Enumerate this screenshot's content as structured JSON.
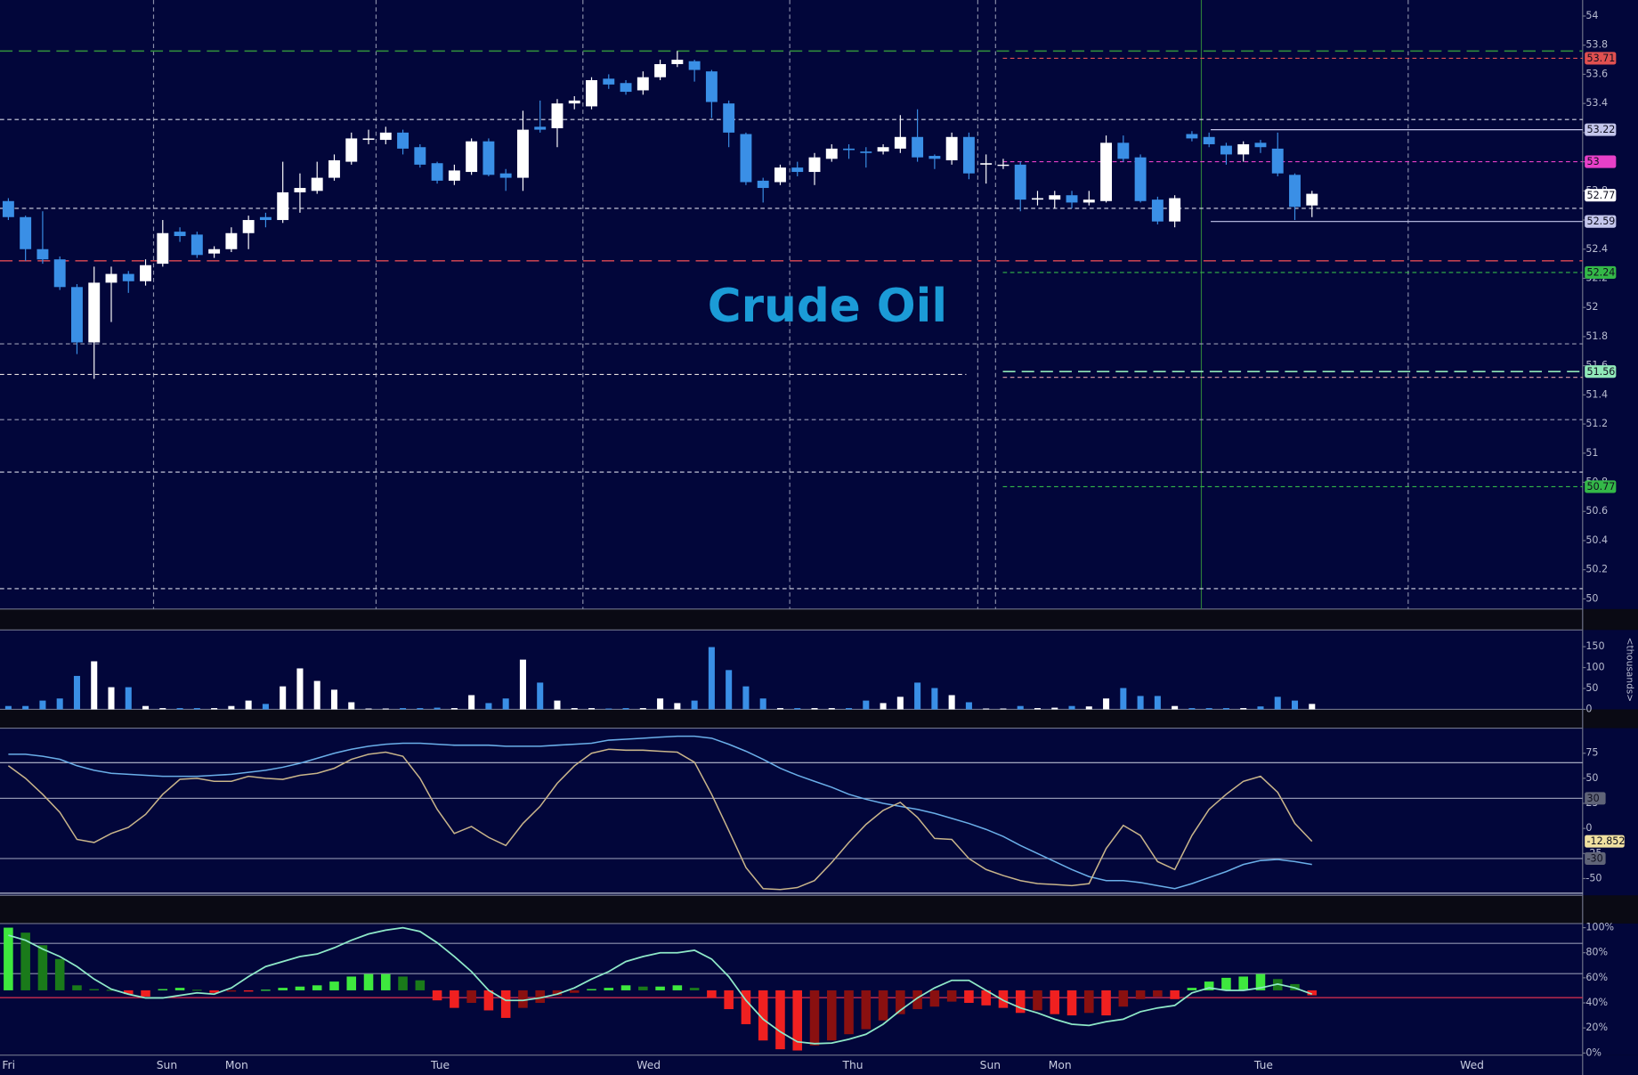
{
  "chart_data": {
    "type": "candlestick",
    "title": "Crude Oil",
    "categories": [
      "Fri",
      null,
      null,
      null,
      null,
      null,
      null,
      null,
      null,
      "Sun",
      null,
      null,
      null,
      "Mon",
      null,
      null,
      null,
      null,
      null,
      null,
      null,
      null,
      null,
      null,
      null,
      "Tue",
      null,
      null,
      null,
      null,
      null,
      null,
      null,
      null,
      null,
      null,
      null,
      "Wed",
      null,
      null,
      null,
      null,
      null,
      null,
      null,
      null,
      null,
      null,
      null,
      "Thu",
      null,
      null,
      null,
      null,
      null,
      null,
      null,
      "Sun",
      null,
      null,
      null,
      "Mon",
      null,
      null,
      null,
      null,
      null,
      null,
      null,
      null,
      null,
      null,
      null,
      "Tue",
      null,
      null,
      null,
      null,
      null,
      null,
      null,
      null,
      null,
      null,
      null,
      "Wed",
      null,
      null,
      null,
      null,
      null,
      null
    ],
    "open": [
      52.73,
      52.62,
      52.4,
      52.33,
      52.14,
      51.76,
      52.17,
      52.23,
      52.18,
      52.3,
      52.52,
      52.5,
      52.37,
      52.4,
      52.51,
      52.62,
      52.6,
      52.79,
      52.8,
      52.89,
      53.0,
      53.15,
      53.15,
      53.2,
      53.1,
      52.99,
      52.87,
      52.93,
      53.14,
      52.92,
      52.89,
      53.24,
      53.23,
      53.4,
      53.38,
      53.57,
      53.54,
      53.49,
      53.58,
      53.67,
      53.69,
      53.62,
      53.4,
      53.19,
      52.87,
      52.86,
      52.96,
      52.93,
      53.02,
      53.09,
      53.07,
      53.07,
      53.09,
      53.17,
      53.04,
      53.01,
      53.17,
      52.98,
      52.98,
      52.98,
      52.74,
      52.74,
      52.77,
      52.72,
      52.73,
      53.13,
      53.03,
      52.74,
      52.59,
      53.19,
      53.17,
      53.11,
      53.05,
      53.13,
      53.09,
      52.91,
      52.7,
      null,
      null,
      null,
      null,
      null,
      null,
      null,
      null,
      null,
      null,
      null,
      null,
      null,
      null,
      null
    ],
    "high": [
      52.75,
      52.63,
      52.66,
      52.35,
      52.16,
      52.28,
      52.28,
      52.25,
      52.33,
      52.6,
      52.55,
      52.52,
      52.42,
      52.55,
      52.63,
      52.65,
      53.0,
      52.92,
      53.0,
      53.05,
      53.2,
      53.22,
      53.24,
      53.22,
      53.12,
      53.0,
      52.98,
      53.16,
      53.16,
      52.95,
      53.35,
      53.42,
      53.43,
      53.45,
      53.58,
      53.6,
      53.56,
      53.62,
      53.7,
      53.76,
      53.7,
      53.63,
      53.42,
      53.2,
      52.89,
      52.98,
      53.0,
      53.06,
      53.12,
      53.12,
      53.1,
      53.12,
      53.32,
      53.36,
      53.05,
      53.2,
      53.2,
      53.05,
      53.02,
      53.0,
      52.8,
      52.8,
      52.8,
      52.8,
      53.18,
      53.18,
      53.05,
      52.76,
      52.77,
      53.21,
      53.2,
      53.13,
      53.14,
      53.15,
      53.2,
      52.92,
      52.8,
      null,
      null,
      null,
      null,
      null,
      null,
      null,
      null,
      null,
      null,
      null,
      null,
      null,
      null,
      null
    ],
    "low": [
      52.6,
      52.32,
      52.3,
      52.12,
      51.68,
      51.51,
      51.9,
      52.1,
      52.15,
      52.28,
      52.45,
      52.34,
      52.34,
      52.38,
      52.4,
      52.55,
      52.58,
      52.65,
      52.78,
      52.87,
      52.98,
      53.12,
      53.12,
      53.05,
      52.96,
      52.85,
      52.84,
      52.91,
      52.9,
      52.8,
      52.8,
      53.2,
      53.1,
      53.36,
      53.36,
      53.5,
      53.46,
      53.46,
      53.56,
      53.65,
      53.55,
      53.3,
      53.1,
      52.84,
      52.72,
      52.84,
      52.9,
      52.84,
      53.0,
      53.02,
      52.96,
      53.05,
      53.06,
      53.0,
      52.95,
      52.98,
      52.88,
      52.85,
      52.95,
      52.66,
      52.7,
      52.68,
      52.68,
      52.7,
      52.72,
      53.0,
      52.72,
      52.57,
      52.55,
      53.14,
      53.1,
      52.98,
      53.0,
      53.06,
      52.9,
      52.6,
      52.62,
      null,
      null,
      null,
      null,
      null,
      null,
      null,
      null,
      null,
      null,
      null,
      null,
      null,
      null,
      null
    ],
    "close": [
      52.62,
      52.4,
      52.33,
      52.14,
      51.76,
      52.17,
      52.23,
      52.18,
      52.29,
      52.51,
      52.49,
      52.36,
      52.4,
      52.51,
      52.6,
      52.6,
      52.79,
      52.82,
      52.89,
      53.01,
      53.16,
      53.16,
      53.2,
      53.09,
      52.98,
      52.87,
      52.94,
      53.14,
      52.91,
      52.89,
      53.22,
      53.22,
      53.4,
      53.42,
      53.56,
      53.53,
      53.48,
      53.58,
      53.67,
      53.7,
      53.63,
      53.41,
      53.2,
      52.86,
      52.82,
      52.96,
      52.93,
      53.03,
      53.09,
      53.08,
      53.06,
      53.1,
      53.17,
      53.03,
      53.02,
      53.17,
      52.92,
      52.99,
      52.98,
      52.74,
      52.75,
      52.77,
      52.72,
      52.74,
      53.13,
      53.02,
      52.73,
      52.59,
      52.75,
      53.16,
      53.12,
      53.05,
      53.12,
      53.1,
      52.92,
      52.69,
      52.78,
      null,
      null,
      null,
      null,
      null,
      null,
      null,
      null,
      null,
      null,
      null,
      null,
      null,
      null,
      null
    ],
    "up_color": "#ffffff",
    "down_color": "#3a8fe6",
    "ylim": [
      49.93,
      54.11
    ],
    "yticks": [
      50,
      50.2,
      50.4,
      50.6,
      50.8,
      51,
      51.2,
      51.4,
      51.6,
      51.8,
      52,
      52.2,
      52.4,
      52.6,
      52.8,
      53,
      53.2,
      53.4,
      53.6,
      53.8,
      54
    ],
    "levels": [
      {
        "value": 53.76,
        "color": "#2f8a3c",
        "style": "longdash",
        "span": "all",
        "tag": false
      },
      {
        "value": 53.29,
        "color": "#d8dae8",
        "style": "dash",
        "span": "all",
        "tag": false
      },
      {
        "value": 52.68,
        "color": "#d8dae8",
        "style": "dash",
        "span": "all",
        "tag": false
      },
      {
        "value": 52.32,
        "color": "#c04050",
        "style": "longdash",
        "span": "all",
        "tag": false
      },
      {
        "value": 51.75,
        "color": "#9a9cb4",
        "style": "dash",
        "span": "all",
        "tag": false
      },
      {
        "value": 51.54,
        "color": "#e8e0e0",
        "style": "dash",
        "span": "early",
        "tag": false
      },
      {
        "value": 51.23,
        "color": "#9a9cb4",
        "style": "dash",
        "span": "all",
        "tag": false
      },
      {
        "value": 50.87,
        "color": "#d8dae8",
        "style": "dash",
        "span": "all",
        "tag": false
      },
      {
        "value": 50.07,
        "color": "#d8dae8",
        "style": "dash",
        "span": "all",
        "tag": false
      },
      {
        "value": 53.71,
        "color": "#e05050",
        "style": "dash",
        "span": "session",
        "tag": true
      },
      {
        "value": 53.22,
        "color": "#c4c6ec",
        "style": "solid",
        "span": "late",
        "tag": true
      },
      {
        "value": 53,
        "color": "#e840c8",
        "style": "dash",
        "span": "session",
        "tag": true
      },
      {
        "value": 52.77,
        "color": "#ffffff",
        "style": "none",
        "span": "none",
        "tag": true
      },
      {
        "value": 52.59,
        "color": "#c4c6ec",
        "style": "solid",
        "span": "late",
        "tag": true
      },
      {
        "value": 52.24,
        "color": "#34b848",
        "style": "dash",
        "span": "session",
        "tag": true
      },
      {
        "value": 51.56,
        "color": "#90e8b8",
        "style": "longdash",
        "span": "session",
        "tag": true
      },
      {
        "value": 51.52,
        "color": "#e0a0a8",
        "style": "dash",
        "span": "session",
        "tag": false
      },
      {
        "value": 50.77,
        "color": "#34b848",
        "style": "dash",
        "span": "session",
        "tag": true
      }
    ],
    "volume": {
      "axis_label": "<thousands>",
      "values": [
        8,
        8,
        21,
        26,
        80,
        115,
        53,
        53,
        8,
        3,
        3,
        3,
        3,
        8,
        21,
        13,
        55,
        98,
        68,
        47,
        17,
        2,
        2,
        3,
        3,
        4,
        3,
        34,
        15,
        26,
        119,
        64,
        21,
        3,
        3,
        2,
        3,
        3,
        26,
        15,
        21,
        149,
        94,
        55,
        26,
        3,
        3,
        3,
        3,
        3,
        21,
        15,
        30,
        64,
        51,
        34,
        17,
        2,
        2,
        8,
        3,
        4,
        8,
        7,
        26,
        51,
        32,
        32,
        8,
        3,
        3,
        3,
        3,
        7,
        30,
        21,
        13,
        null,
        null,
        null,
        null,
        null,
        null,
        null,
        null,
        null,
        null,
        null,
        null,
        null,
        null,
        null
      ],
      "ylim": [
        0,
        190
      ],
      "yticks": [
        0,
        50,
        100,
        150
      ]
    },
    "oscillator": {
      "series": [
        {
          "color": "#6aaee8",
          "values": [
            74,
            74,
            72,
            69,
            62.5,
            58,
            55,
            54,
            53,
            52,
            52,
            52,
            53,
            54,
            56,
            58,
            61,
            65,
            70,
            75,
            79,
            82,
            84,
            85,
            85,
            84,
            83,
            83,
            83,
            82,
            82,
            82,
            83,
            84,
            85,
            88,
            89,
            90,
            91,
            92,
            92,
            90,
            84,
            77,
            69,
            60,
            53,
            47,
            41,
            34,
            29,
            25,
            22,
            19,
            15,
            10,
            5,
            -1,
            -8,
            -17,
            -25,
            -33,
            -41,
            -48,
            -52,
            -52,
            -54,
            -57,
            -60,
            -55,
            -49,
            -43,
            -36,
            -32,
            -31,
            -33,
            -36,
            null,
            null,
            null,
            null,
            null,
            null,
            null,
            null,
            null,
            null,
            null,
            null,
            null,
            null,
            null
          ]
        },
        {
          "color": "#c8b48a",
          "values": [
            62.5,
            50,
            34,
            16,
            -11,
            -14,
            -5,
            1,
            14,
            34,
            49,
            50,
            47,
            47,
            52,
            50,
            49,
            53,
            55,
            60,
            69,
            74,
            76,
            72,
            50,
            19,
            -5,
            2,
            -9,
            -17,
            5,
            22,
            45,
            62.5,
            75,
            79,
            78,
            78,
            77,
            76,
            66,
            34,
            -2,
            -39,
            -60,
            -61,
            -59,
            -52,
            -34,
            -14,
            4,
            18,
            26,
            11,
            -10,
            -11,
            -30,
            -41,
            -47,
            -52,
            -55,
            -56,
            -57,
            -55,
            -20,
            3,
            -7,
            -33,
            -41,
            -7,
            19,
            34,
            47,
            52,
            36,
            5,
            -12.852,
            null,
            null,
            null,
            null,
            null,
            null,
            null,
            null,
            null,
            null,
            null,
            null,
            null,
            null,
            null
          ]
        }
      ],
      "ylim": [
        -66.7,
        100
      ],
      "yticks": [
        75,
        50,
        25,
        0,
        -25,
        -50
      ],
      "levels": [
        30,
        -30
      ],
      "bands": [
        65.6,
        -64.6
      ]
    },
    "histogram": {
      "base": 50,
      "values": [
        100,
        96,
        86,
        75,
        54,
        51,
        50.5,
        47,
        45,
        51,
        52,
        50.5,
        48,
        49,
        49,
        50.5,
        52,
        53,
        54,
        57,
        61,
        63,
        63,
        61,
        58,
        42,
        36,
        40,
        34,
        28,
        36,
        40,
        46,
        48,
        51,
        52,
        54,
        53,
        53,
        54,
        52,
        44,
        35,
        23,
        10,
        3,
        2,
        6,
        10,
        15,
        19,
        26,
        31,
        35,
        37,
        41,
        40,
        38,
        36,
        32,
        34,
        31,
        30,
        32,
        30,
        37,
        43,
        45,
        43,
        52,
        57,
        60,
        61,
        63,
        59,
        55,
        46,
        null,
        null,
        null,
        null,
        null,
        null,
        null,
        null,
        null,
        null,
        null,
        null,
        null,
        null,
        null
      ],
      "line": {
        "color": "#8ee8c8",
        "values": [
          94,
          90,
          83,
          77,
          69,
          59,
          51,
          47,
          44,
          44,
          46,
          48,
          47,
          52,
          61,
          69,
          73,
          77,
          79,
          84,
          90,
          95,
          98,
          100,
          97,
          88,
          77,
          65,
          50,
          42,
          42,
          44,
          47,
          52,
          59,
          65,
          73,
          77,
          80,
          80,
          82,
          75,
          61,
          42,
          27,
          17,
          9,
          7.5,
          8,
          11,
          15,
          23,
          34,
          44,
          52,
          58,
          58,
          50,
          42,
          36,
          32,
          27,
          23,
          22,
          25,
          27,
          33,
          36,
          38,
          48,
          52,
          50,
          50,
          52,
          55,
          52,
          47,
          null,
          null,
          null,
          null,
          null,
          null,
          null,
          null,
          null,
          null,
          null,
          null,
          null,
          null,
          null
        ]
      },
      "colors": {
        "up_rising": "#3ee83e",
        "up_falling": "#1a7a1a",
        "down_falling": "#f02020",
        "down_rising": "#8a1010"
      },
      "ylim": [
        -1.7,
        103.3
      ],
      "yticks": [
        {
          "value": 100,
          "label": "100%"
        },
        {
          "value": 80,
          "label": "80%"
        },
        {
          "value": 60,
          "label": "60%"
        },
        {
          "value": 40,
          "label": "40%"
        },
        {
          "value": 20,
          "label": "20%"
        },
        {
          "value": 0,
          "label": "0%"
        }
      ],
      "levels": [
        {
          "value": 87.5,
          "color": "#9094b0"
        },
        {
          "value": 63.3,
          "color": "#9094b0"
        },
        {
          "value": 44.2,
          "color": "#e03050"
        }
      ]
    }
  }
}
